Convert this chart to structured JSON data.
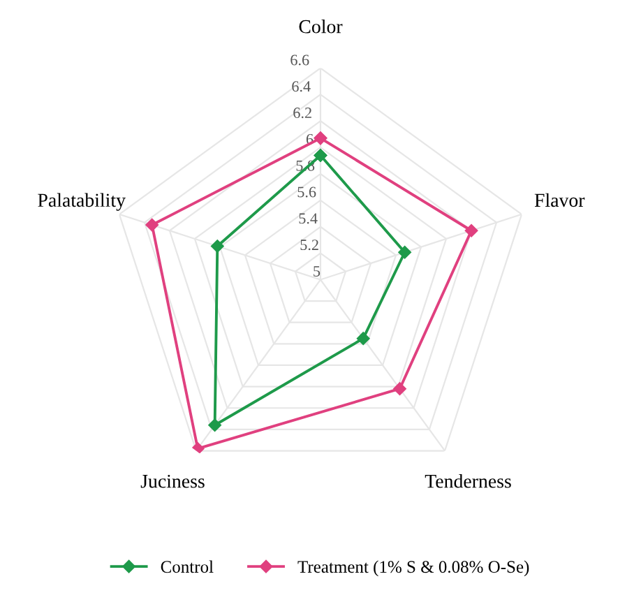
{
  "chart_data": {
    "type": "radar",
    "categories": [
      "Color",
      "Flavor",
      "Tenderness",
      "Juciness",
      "Palatability"
    ],
    "series": [
      {
        "name": "Control",
        "color": "#1e9a4a",
        "values": [
          5.94,
          5.67,
          5.55,
          6.36,
          5.82
        ]
      },
      {
        "name": "Treatment (1% S & 0.08% O-Se)",
        "color": "#e0407f",
        "values": [
          6.07,
          6.2,
          6.02,
          6.58,
          6.34
        ]
      }
    ],
    "ylim": [
      5,
      6.6
    ],
    "yticks": [
      5,
      5.2,
      5.4,
      5.6,
      5.8,
      6,
      6.2,
      6.4,
      6.6
    ],
    "marker": "diamond",
    "line_style": "solid",
    "grid": true,
    "legend": "bottom"
  }
}
